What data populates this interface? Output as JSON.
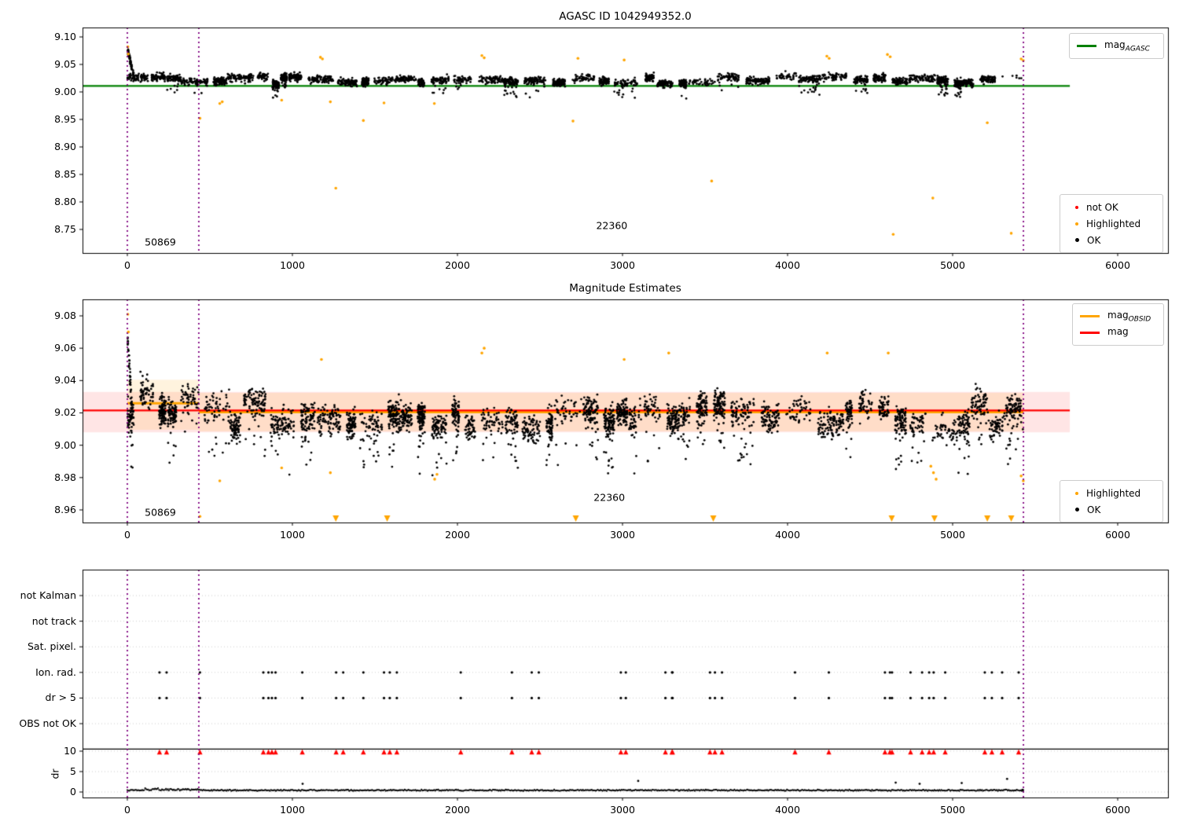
{
  "colors": {
    "ok": "#000000",
    "not_ok": "#ff0000",
    "highlighted": "#ffa500",
    "agasc_line": "#008000",
    "mag_line": "#ff0000",
    "obsid_line": "#ffa500",
    "vline": "#800080",
    "band_red": "rgba(255,0,0,0.10)",
    "band_orange": "rgba(255,165,0,0.13)",
    "grid": "#c8c8c8",
    "flag_marker": "#ff0000"
  },
  "chart_data": [
    {
      "type": "scatter",
      "title": "AGASC ID 1042949352.0",
      "xlim": [
        -271,
        6305
      ],
      "ylim": [
        8.707,
        9.117
      ],
      "xticks": [
        0,
        1000,
        2000,
        3000,
        4000,
        5000,
        6000
      ],
      "yticks": [
        9.1,
        9.05,
        9.0,
        8.95,
        8.9,
        8.85,
        8.8,
        8.75
      ],
      "legend_line": {
        "base": "mag",
        "sub": "AGASC"
      },
      "legend_points": [
        {
          "label": "not OK",
          "color": "#ff0000"
        },
        {
          "label": "Highlighted",
          "color": "#ffa500"
        },
        {
          "label": "OK",
          "color": "#000000"
        }
      ],
      "agasc_line": {
        "value": 9.011,
        "x_start": -271,
        "x_end": 5710
      },
      "vlines": [
        0,
        433,
        5429
      ],
      "annotations": [
        {
          "text": "50869",
          "x": 200,
          "y": 8.727
        },
        {
          "text": "22360",
          "x": 2935,
          "y": 8.757
        }
      ],
      "scatter": {
        "seed": 71,
        "x_start": 0,
        "x_end": 5429,
        "mean": 9.021,
        "cluster_spread": 0.0075,
        "noise": 0.0085,
        "tail_prob": 0.3,
        "tail_depth": 0.026,
        "spike": {
          "n": 55,
          "width": 45,
          "height": 0.058
        }
      },
      "highlighted": [
        [
          3,
          9.082
        ],
        [
          6,
          9.069
        ],
        [
          440,
          8.952
        ],
        [
          560,
          8.979
        ],
        [
          575,
          8.982
        ],
        [
          935,
          8.985
        ],
        [
          1170,
          9.063
        ],
        [
          1182,
          9.06
        ],
        [
          1230,
          8.982
        ],
        [
          1263,
          8.825
        ],
        [
          1430,
          8.948
        ],
        [
          1555,
          8.98
        ],
        [
          1860,
          8.979
        ],
        [
          2148,
          9.066
        ],
        [
          2162,
          9.062
        ],
        [
          2700,
          8.947
        ],
        [
          2730,
          9.061
        ],
        [
          3010,
          9.058
        ],
        [
          3540,
          8.838
        ],
        [
          4238,
          9.065
        ],
        [
          4252,
          9.061
        ],
        [
          4605,
          9.068
        ],
        [
          4622,
          9.064
        ],
        [
          4640,
          8.741
        ],
        [
          4880,
          8.807
        ],
        [
          5210,
          8.944
        ],
        [
          5355,
          8.743
        ],
        [
          5415,
          9.06
        ],
        [
          5428,
          9.057
        ]
      ]
    },
    {
      "type": "scatter",
      "title": "Magnitude Estimates",
      "xlim": [
        -271,
        6305
      ],
      "ylim": [
        8.952,
        9.09
      ],
      "xticks": [
        0,
        1000,
        2000,
        3000,
        4000,
        5000,
        6000
      ],
      "yticks": [
        9.08,
        9.06,
        9.04,
        9.02,
        9.0,
        8.98,
        8.96
      ],
      "legend_lines": [
        {
          "base": "mag",
          "sub": "OBSID",
          "color": "#ffa500"
        },
        {
          "base": "mag",
          "sub": "",
          "color": "#ff0000"
        }
      ],
      "legend_points": [
        {
          "label": "Highlighted",
          "color": "#ffa500"
        },
        {
          "label": "OK",
          "color": "#000000"
        }
      ],
      "mag_line": {
        "value": 9.0215,
        "x_start": -271,
        "x_end": 5710
      },
      "mag_band": {
        "lo": 9.008,
        "hi": 9.033,
        "x_start": -271,
        "x_end": 5710
      },
      "obsid_segments": [
        {
          "obsid": "50869",
          "x0": 0,
          "x1": 433,
          "value": 9.026,
          "band_lo": 9.0095,
          "band_hi": 9.0405
        },
        {
          "obsid": "22360",
          "x0": 433,
          "x1": 5429,
          "value": 9.0205,
          "band_lo": 9.0086,
          "band_hi": 9.0324
        }
      ],
      "vlines": [
        0,
        433,
        5429
      ],
      "annotations": [
        {
          "text": "50869",
          "x": 200,
          "y": 8.9585
        },
        {
          "text": "22360",
          "x": 2920,
          "y": 8.968
        }
      ],
      "scatter": {
        "seed": 133,
        "x_start": 0,
        "x_end": 5429,
        "mean": 9.018,
        "cluster_spread": 0.009,
        "noise": 0.0105,
        "tail_prob": 0.5,
        "tail_depth": 0.03,
        "first_seg_offset": 0.008,
        "spike": {
          "n": 40,
          "width": 30,
          "height": 0.052
        }
      },
      "highlighted": [
        [
          3,
          9.081
        ],
        [
          6,
          9.07
        ],
        [
          440,
          8.956
        ],
        [
          560,
          8.978
        ],
        [
          935,
          8.986
        ],
        [
          1176,
          9.053
        ],
        [
          1230,
          8.983
        ],
        [
          1862,
          8.979
        ],
        [
          1876,
          8.982
        ],
        [
          2148,
          9.057
        ],
        [
          2162,
          9.06
        ],
        [
          3010,
          9.053
        ],
        [
          3280,
          9.057
        ],
        [
          4240,
          9.057
        ],
        [
          4610,
          9.057
        ],
        [
          4868,
          8.987
        ],
        [
          4884,
          8.983
        ],
        [
          4900,
          8.979
        ],
        [
          5415,
          8.981
        ],
        [
          5428,
          8.978
        ]
      ],
      "clipped_low_x": [
        1263,
        1574,
        2717,
        3550,
        4631,
        4890,
        5210,
        5355
      ]
    },
    {
      "type": "flags",
      "categories": [
        "not Kalman",
        "not track",
        "Sat. pixel.",
        "Ion. rad.",
        "dr > 5",
        "OBS not OK"
      ],
      "flag_rows": [
        "Ion. rad.",
        "dr > 5"
      ],
      "dr_label": "dr",
      "dr_ticks": [
        10,
        5,
        0
      ],
      "xticks": [
        0,
        1000,
        2000,
        3000,
        4000,
        5000,
        6000
      ],
      "vlines": [
        0,
        433,
        5429
      ],
      "separator_dr": 10.5,
      "red_marker_dr": 9.8,
      "flag_x": [
        195,
        440,
        824,
        855,
        876,
        1060,
        1265,
        1430,
        1555,
        1590,
        2020,
        2330,
        2450,
        2990,
        3020,
        3260,
        3300,
        3530,
        3560,
        4045,
        4250,
        4590,
        4620,
        4745,
        4815,
        4885,
        4955,
        5195,
        5300,
        5400
      ],
      "dr_trace": {
        "seed": 5,
        "x_start": 0,
        "x_end": 5429,
        "base": 0.42,
        "noise": 0.2,
        "spike_region": [
          100,
          440
        ],
        "spike_extra": 0.55
      },
      "dr_outliers": [
        [
          1062,
          2.0
        ],
        [
          3095,
          2.7
        ],
        [
          4655,
          2.3
        ],
        [
          4800,
          2.0
        ],
        [
          5055,
          2.2
        ],
        [
          5330,
          3.2
        ]
      ]
    }
  ]
}
